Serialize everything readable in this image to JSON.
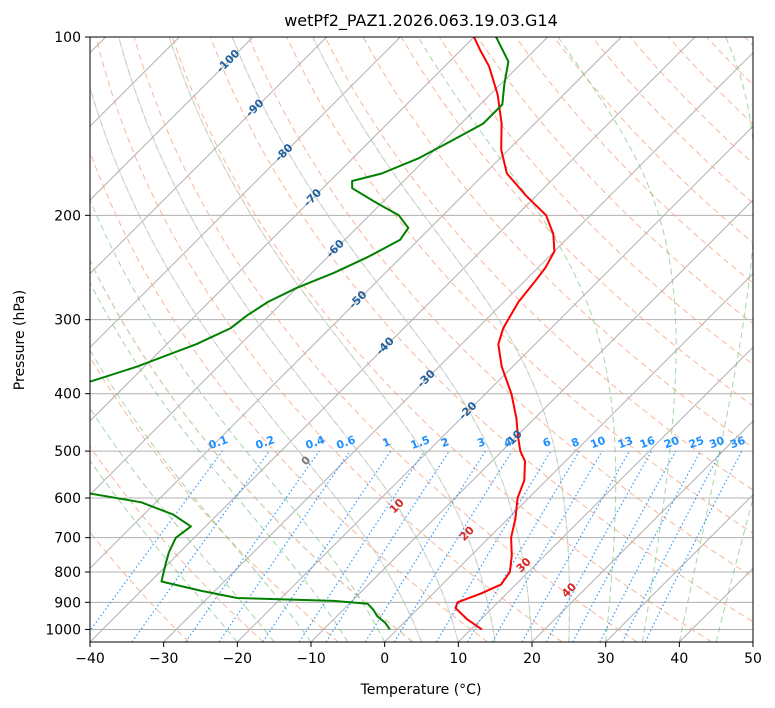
{
  "chart_data": {
    "type": "line",
    "title": "wetPf2_PAZ1.2026.063.19.03.G14",
    "xlabel": "Temperature (°C)",
    "ylabel": "Pressure (hPa)",
    "xlim": [
      -40,
      50
    ],
    "ylim": [
      1050,
      100
    ],
    "y_scale": "log",
    "x_ticks": [
      -40,
      -30,
      -20,
      -10,
      0,
      10,
      20,
      30,
      40,
      50
    ],
    "x_tick_labels": [
      "−40",
      "−30",
      "−20",
      "−10",
      "0",
      "10",
      "20",
      "30",
      "40",
      "50"
    ],
    "y_ticks": [
      100,
      200,
      300,
      400,
      500,
      600,
      700,
      800,
      900,
      1000
    ],
    "y_tick_labels": [
      "100",
      "200",
      "300",
      "400",
      "500",
      "600",
      "700",
      "800",
      "900",
      "1000"
    ],
    "grid": true,
    "skew_deg": 45,
    "series": [
      {
        "role": "temperature",
        "color": "#ff0000",
        "points": [
          [
            1000,
            11.5
          ],
          [
            960,
            8.0
          ],
          [
            920,
            5.0
          ],
          [
            900,
            4.5
          ],
          [
            870,
            6.5
          ],
          [
            840,
            8.0
          ],
          [
            800,
            7.5
          ],
          [
            750,
            5.5
          ],
          [
            700,
            3.0
          ],
          [
            650,
            1.0
          ],
          [
            600,
            -1.5
          ],
          [
            560,
            -3.0
          ],
          [
            520,
            -5.5
          ],
          [
            500,
            -7.5
          ],
          [
            470,
            -10.0
          ],
          [
            440,
            -12.5
          ],
          [
            400,
            -16.5
          ],
          [
            360,
            -21.5
          ],
          [
            330,
            -25.0
          ],
          [
            310,
            -26.5
          ],
          [
            300,
            -27.0
          ],
          [
            280,
            -28.0
          ],
          [
            260,
            -28.5
          ],
          [
            245,
            -29.0
          ],
          [
            230,
            -30.0
          ],
          [
            215,
            -32.5
          ],
          [
            200,
            -36.0
          ],
          [
            185,
            -41.5
          ],
          [
            170,
            -47.0
          ],
          [
            155,
            -51.0
          ],
          [
            140,
            -54.5
          ],
          [
            125,
            -59.0
          ],
          [
            112,
            -64.0
          ],
          [
            105,
            -67.5
          ],
          [
            100,
            -70.0
          ]
        ]
      },
      {
        "role": "dewpoint",
        "color": "#008000",
        "points": [
          [
            1000,
            -1.0
          ],
          [
            975,
            -2.5
          ],
          [
            950,
            -4.5
          ],
          [
            925,
            -6.0
          ],
          [
            905,
            -7.5
          ],
          [
            895,
            -12.5
          ],
          [
            885,
            -26.0
          ],
          [
            860,
            -32.0
          ],
          [
            830,
            -38.5
          ],
          [
            800,
            -39.5
          ],
          [
            770,
            -40.5
          ],
          [
            740,
            -41.5
          ],
          [
            700,
            -42.5
          ],
          [
            670,
            -42.0
          ],
          [
            640,
            -46.0
          ],
          [
            610,
            -52.0
          ],
          [
            590,
            -60.0
          ],
          [
            580,
            -75.0
          ],
          [
            505,
            -86.0
          ],
          [
            490,
            -78.0
          ],
          [
            470,
            -72.0
          ],
          [
            450,
            -72.5
          ],
          [
            430,
            -77.0
          ],
          [
            415,
            -80.0
          ],
          [
            405,
            -79.0
          ],
          [
            385,
            -76.0
          ],
          [
            360,
            -71.0
          ],
          [
            330,
            -66.0
          ],
          [
            310,
            -63.5
          ],
          [
            295,
            -63.0
          ],
          [
            280,
            -62.0
          ],
          [
            265,
            -60.0
          ],
          [
            250,
            -57.0
          ],
          [
            235,
            -54.5
          ],
          [
            220,
            -52.5
          ],
          [
            210,
            -53.0
          ],
          [
            200,
            -56.0
          ],
          [
            190,
            -61.0
          ],
          [
            180,
            -66.0
          ],
          [
            175,
            -67.0
          ],
          [
            170,
            -64.0
          ],
          [
            160,
            -61.0
          ],
          [
            150,
            -59.0
          ],
          [
            140,
            -57.0
          ],
          [
            130,
            -57.0
          ],
          [
            120,
            -59.5
          ],
          [
            110,
            -62.0
          ],
          [
            100,
            -67.0
          ]
        ]
      }
    ],
    "isotherm_labels": [
      "-100",
      "-90",
      "-80",
      "-70",
      "-60",
      "-50",
      "-40",
      "-30",
      "-20",
      "-10"
    ],
    "isotherm_label_pressures": [
      110,
      132,
      157,
      187,
      228,
      278,
      333,
      378,
      428,
      478
    ],
    "mixing_ratio_labels": [
      "0.1",
      "0.2",
      "0.4",
      "0.6",
      "1",
      "1.5",
      "2",
      "3",
      "4",
      "6",
      "8",
      "10",
      "13",
      "16",
      "20",
      "25",
      "30",
      "36"
    ],
    "mixing_ratio_values": [
      0.1,
      0.2,
      0.4,
      0.6,
      1,
      1.5,
      2,
      3,
      4,
      6,
      8,
      10,
      13,
      16,
      20,
      25,
      30,
      36
    ],
    "wetbulb_labels": [
      "0",
      "10",
      "20",
      "30",
      "40"
    ],
    "wetbulb_label_pressures": [
      520,
      620,
      690,
      780,
      860
    ],
    "colors": {
      "isotherm_label": "#1f5f9e",
      "mixing_ratio": "#1e90ff",
      "wetbulb_label_zero": "#777777",
      "wetbulb_label": "#d62728",
      "dry_adiabat": "#f4a582",
      "moist_adiabat": "#66bb66",
      "grid": "#b0b0b0"
    }
  }
}
